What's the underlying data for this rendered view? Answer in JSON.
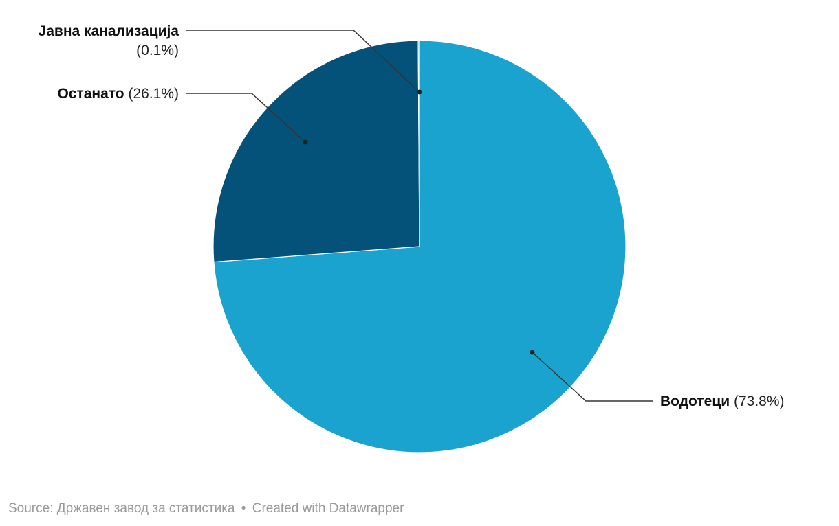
{
  "chart_data": {
    "type": "pie",
    "categories": [
      "Јавна канализација",
      "Останато",
      "Водотеци"
    ],
    "values": [
      0.1,
      26.1,
      73.8
    ],
    "value_labels": [
      "(0.1%)",
      "(26.1%)",
      "(73.8%)"
    ],
    "colors": [
      "#1a9fce",
      "#04527a",
      "#1aa3cf"
    ],
    "slice_colors": {
      "Јавна канализација": "#1aa3cf",
      "Останато": "#04527a",
      "Водотеци": "#1aa3cf"
    },
    "legend": "none (direct labels)"
  },
  "footer": {
    "source_label": "Source:",
    "source_value": "Државен завод за статистика",
    "separator": "•",
    "credit": "Created with Datawrapper"
  }
}
